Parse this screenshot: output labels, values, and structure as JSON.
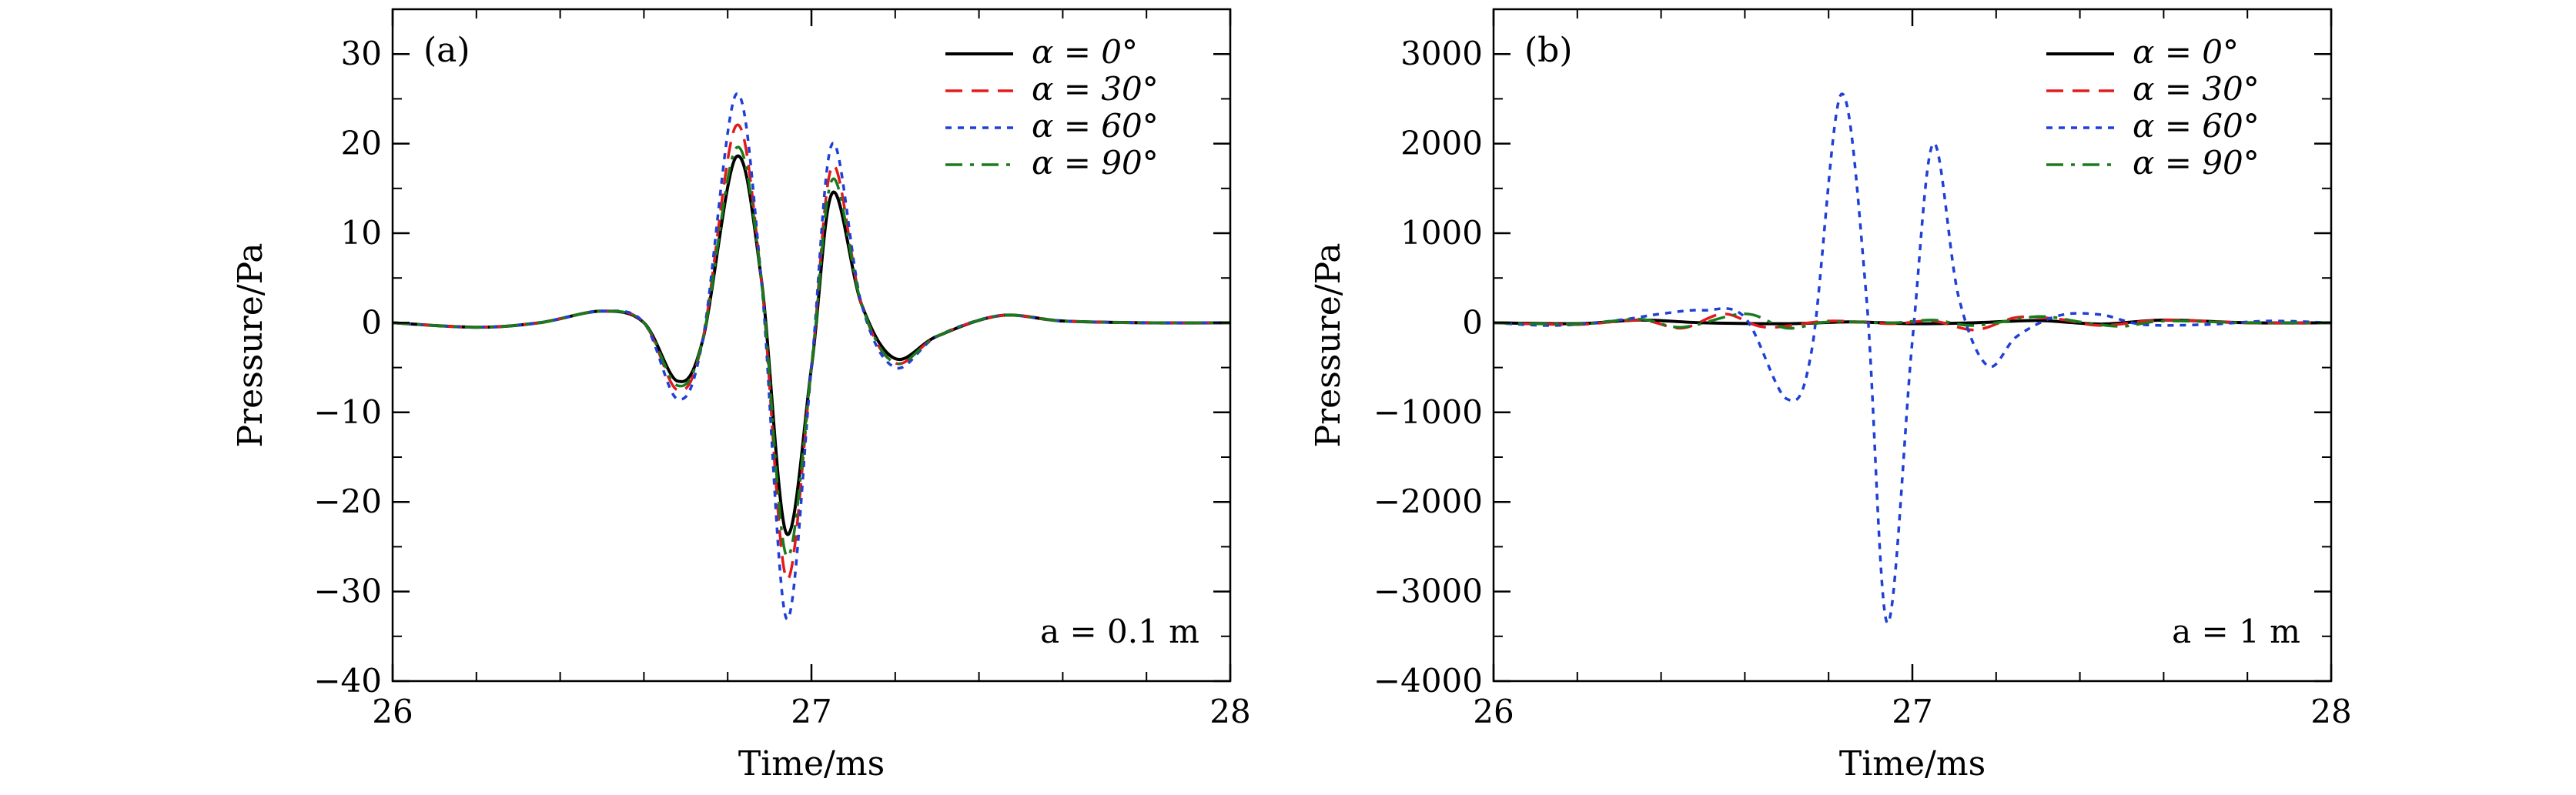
{
  "chart_data": [
    {
      "type": "line",
      "panel_label": "(a)",
      "xlabel": "Time/ms",
      "ylabel": "Pressure/Pa",
      "xlim": [
        26,
        28
      ],
      "ylim": [
        -40,
        35
      ],
      "xticks": [
        26,
        27,
        28
      ],
      "xtick_labels": [
        "26",
        "27",
        "28"
      ],
      "yticks": [
        -40,
        -30,
        -20,
        -10,
        0,
        10,
        20,
        30
      ],
      "ytick_labels": [
        "−40",
        "−30",
        "−20",
        "−10",
        "0",
        "10",
        "20",
        "30"
      ],
      "grid": false,
      "legend_position": "top-right",
      "annotation": "a = 0.1 m",
      "series": [
        {
          "name": "α = 0°",
          "color": "#000000",
          "dash": "solid",
          "x": [
            26.0,
            26.2,
            26.35,
            26.5,
            26.6,
            26.68,
            26.74,
            26.82,
            26.88,
            26.94,
            27.0,
            27.05,
            27.12,
            27.2,
            27.3,
            27.45,
            27.6,
            27.8,
            28.0
          ],
          "y": [
            0,
            -0.5,
            0,
            1.3,
            0,
            -6.5,
            -2,
            18.5,
            5,
            -23.5,
            -5,
            14.5,
            2,
            -4,
            -1.5,
            0.8,
            0.2,
            0,
            0
          ]
        },
        {
          "name": "α = 30°",
          "color": "#e31a1c",
          "dash": "dashed",
          "x": [
            26.0,
            26.2,
            26.35,
            26.5,
            26.6,
            26.68,
            26.74,
            26.82,
            26.88,
            26.94,
            27.0,
            27.05,
            27.12,
            27.2,
            27.3,
            27.45,
            27.6,
            27.8,
            28.0
          ],
          "y": [
            0,
            -0.5,
            0,
            1.3,
            0,
            -7.5,
            -2,
            22,
            5,
            -28.5,
            -5,
            17.5,
            2,
            -4.5,
            -1.5,
            0.8,
            0.2,
            0,
            0
          ]
        },
        {
          "name": "α = 60°",
          "color": "#1f3fd6",
          "dash": "dotted",
          "x": [
            26.0,
            26.2,
            26.35,
            26.5,
            26.6,
            26.68,
            26.74,
            26.82,
            26.88,
            26.94,
            27.0,
            27.05,
            27.12,
            27.2,
            27.3,
            27.45,
            27.6,
            27.8,
            28.0
          ],
          "y": [
            0,
            -0.5,
            0,
            1.3,
            0,
            -8.5,
            -2,
            25.5,
            5,
            -33,
            -5,
            20,
            2,
            -5,
            -1.5,
            0.8,
            0.2,
            0,
            0
          ]
        },
        {
          "name": "α = 90°",
          "color": "#1b7a1b",
          "dash": "dashdot",
          "x": [
            26.0,
            26.2,
            26.35,
            26.5,
            26.6,
            26.68,
            26.74,
            26.82,
            26.88,
            26.94,
            27.0,
            27.05,
            27.12,
            27.2,
            27.3,
            27.45,
            27.6,
            27.8,
            28.0
          ],
          "y": [
            0,
            -0.5,
            0,
            1.3,
            0,
            -7,
            -2,
            19.5,
            5,
            -26,
            -5,
            16,
            2,
            -4.5,
            -1.5,
            0.8,
            0.2,
            0,
            0
          ]
        }
      ]
    },
    {
      "type": "line",
      "panel_label": "(b)",
      "xlabel": "Time/ms",
      "ylabel": "Pressure/Pa",
      "xlim": [
        26,
        28
      ],
      "ylim": [
        -4000,
        3500
      ],
      "xticks": [
        26,
        27,
        28
      ],
      "xtick_labels": [
        "26",
        "27",
        "28"
      ],
      "yticks": [
        -4000,
        -3000,
        -2000,
        -1000,
        0,
        1000,
        2000,
        3000
      ],
      "ytick_labels": [
        "−4000",
        "−3000",
        "−2000",
        "−1000",
        "0",
        "1000",
        "2000",
        "3000"
      ],
      "grid": false,
      "legend_position": "top-right",
      "annotation": "a = 1 m",
      "series": [
        {
          "name": "α = 0°",
          "color": "#000000",
          "dash": "solid",
          "x": [
            26.0,
            26.2,
            26.35,
            26.5,
            26.7,
            26.85,
            27.0,
            27.15,
            27.3,
            27.45,
            27.6,
            27.8,
            28.0
          ],
          "y": [
            0,
            -10,
            30,
            0,
            -10,
            10,
            -10,
            0,
            25,
            -15,
            30,
            0,
            0
          ]
        },
        {
          "name": "α = 30°",
          "color": "#e31a1c",
          "dash": "dashed",
          "x": [
            26.0,
            26.2,
            26.35,
            26.45,
            26.55,
            26.65,
            26.8,
            26.95,
            27.05,
            27.15,
            27.25,
            27.35,
            27.45,
            27.6,
            27.8,
            28.0
          ],
          "y": [
            0,
            -20,
            30,
            -60,
            100,
            -50,
            20,
            -10,
            20,
            -80,
            60,
            40,
            -30,
            30,
            0,
            0
          ]
        },
        {
          "name": "α = 60°",
          "color": "#1f3fd6",
          "dash": "dotted",
          "x": [
            26.0,
            26.15,
            26.3,
            26.4,
            26.5,
            26.6,
            26.7,
            26.76,
            26.83,
            26.89,
            26.94,
            27.0,
            27.05,
            27.11,
            27.18,
            27.25,
            27.35,
            27.45,
            27.55,
            27.7,
            27.85,
            28.0
          ],
          "y": [
            0,
            -30,
            30,
            100,
            140,
            60,
            -850,
            -300,
            2550,
            300,
            -3350,
            -200,
            2000,
            300,
            -480,
            -150,
            80,
            90,
            -20,
            -20,
            20,
            0
          ]
        },
        {
          "name": "α = 90°",
          "color": "#1b7a1b",
          "dash": "dashdot",
          "x": [
            26.0,
            26.2,
            26.35,
            26.45,
            26.6,
            26.7,
            26.8,
            26.95,
            27.05,
            27.15,
            27.3,
            27.4,
            27.5,
            27.6,
            27.8,
            28.0
          ],
          "y": [
            0,
            -15,
            40,
            -50,
            100,
            -60,
            10,
            0,
            30,
            -30,
            70,
            10,
            -40,
            20,
            0,
            0
          ]
        }
      ]
    }
  ]
}
